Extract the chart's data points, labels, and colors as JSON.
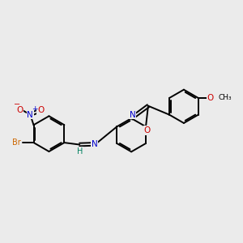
{
  "bg_color": "#ebebeb",
  "bond_color": "#000000",
  "lw": 1.4,
  "dbg": 0.06,
  "fs": 7.5,
  "ac": {
    "Br": "#cc6600",
    "N": "#0000cc",
    "O": "#cc0000",
    "H": "#008060",
    "C": "#000000"
  },
  "figsize": [
    3.0,
    3.0
  ],
  "dpi": 100
}
